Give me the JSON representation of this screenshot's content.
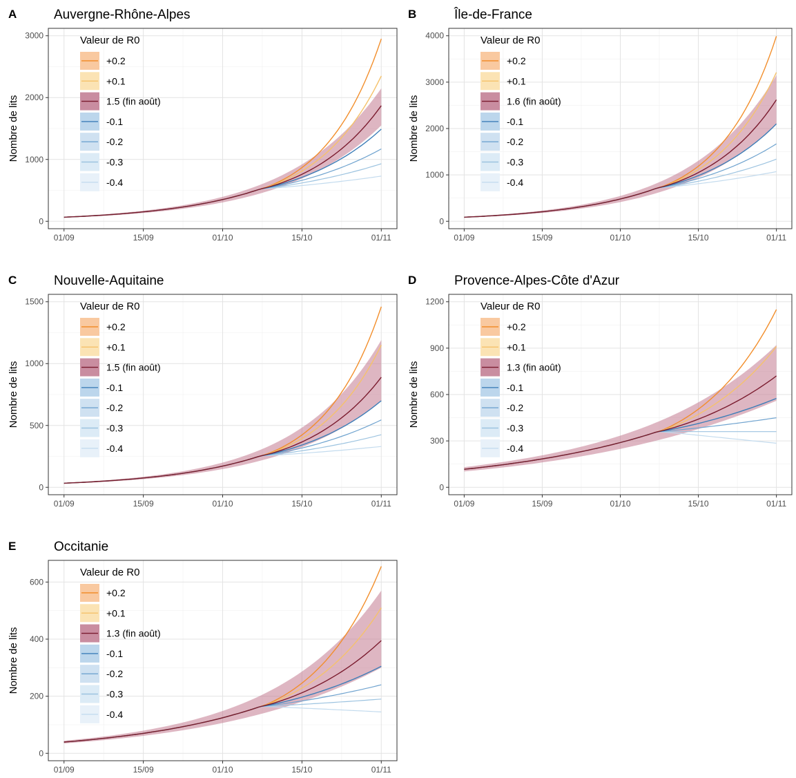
{
  "chart_data": [
    {
      "type": "line",
      "letter": "A",
      "title": "Auvergne-Rhône-Alpes",
      "ylabel": "Nombre de lits",
      "ylim": [
        0,
        3000
      ],
      "yticks": [
        0,
        1000,
        2000,
        3000
      ],
      "x_ticks": [
        "01/09",
        "15/09",
        "01/10",
        "15/10",
        "01/11"
      ],
      "legend_title": "Valeur de R0",
      "legend_labels": [
        "+0.2",
        "+0.1",
        "1.5 (fin août)",
        "-0.1",
        "-0.2",
        "-0.3",
        "-0.4"
      ],
      "series": [
        {
          "name": "+0.2",
          "end": 2950
        },
        {
          "name": "+0.1",
          "end": 2350
        },
        {
          "name": "1.5 (fin août)",
          "end": 1870,
          "band_end": [
            1550,
            2150
          ]
        },
        {
          "name": "-0.1",
          "end": 1490
        },
        {
          "name": "-0.2",
          "end": 1170
        },
        {
          "name": "-0.3",
          "end": 930
        },
        {
          "name": "-0.4",
          "end": 730
        }
      ]
    },
    {
      "type": "line",
      "letter": "B",
      "title": "Île-de-France",
      "ylabel": "Nombre de lits",
      "ylim": [
        0,
        4000
      ],
      "yticks": [
        0,
        1000,
        2000,
        3000,
        4000
      ],
      "x_ticks": [
        "01/09",
        "15/09",
        "01/10",
        "15/10",
        "01/11"
      ],
      "legend_title": "Valeur de R0",
      "legend_labels": [
        "+0.2",
        "+0.1",
        "1.6 (fin août)",
        "-0.1",
        "-0.2",
        "-0.3",
        "-0.4"
      ],
      "series": [
        {
          "name": "+0.2",
          "end": 3990
        },
        {
          "name": "+0.1",
          "end": 3210
        },
        {
          "name": "1.6 (fin août)",
          "end": 2620,
          "band_end": [
            2100,
            3150
          ]
        },
        {
          "name": "-0.1",
          "end": 2100
        },
        {
          "name": "-0.2",
          "end": 1670
        },
        {
          "name": "-0.3",
          "end": 1340
        },
        {
          "name": "-0.4",
          "end": 1070
        }
      ]
    },
    {
      "type": "line",
      "letter": "C",
      "title": "Nouvelle-Aquitaine",
      "ylabel": "Nombre de lits",
      "ylim": [
        0,
        1500
      ],
      "yticks": [
        0,
        500,
        1000,
        1500
      ],
      "x_ticks": [
        "01/09",
        "15/09",
        "01/10",
        "15/10",
        "01/11"
      ],
      "legend_title": "Valeur de R0",
      "legend_labels": [
        "+0.2",
        "+0.1",
        "1.5 (fin août)",
        "-0.1",
        "-0.2",
        "-0.3",
        "-0.4"
      ],
      "series": [
        {
          "name": "+0.2",
          "end": 1460
        },
        {
          "name": "+0.1",
          "end": 1150
        },
        {
          "name": "1.5 (fin août)",
          "end": 890,
          "band_end": [
            700,
            1190
          ]
        },
        {
          "name": "-0.1",
          "end": 700
        },
        {
          "name": "-0.2",
          "end": 545
        },
        {
          "name": "-0.3",
          "end": 425
        },
        {
          "name": "-0.4",
          "end": 330
        }
      ]
    },
    {
      "type": "line",
      "letter": "D",
      "title": "Provence-Alpes-Côte d'Azur",
      "ylabel": "Nombre de lits",
      "ylim": [
        0,
        1200
      ],
      "yticks": [
        0,
        300,
        600,
        900,
        1200
      ],
      "x_ticks": [
        "01/09",
        "15/09",
        "01/10",
        "15/10",
        "01/11"
      ],
      "legend_title": "Valeur de R0",
      "legend_labels": [
        "+0.2",
        "+0.1",
        "1.3 (fin août)",
        "-0.1",
        "-0.2",
        "-0.3",
        "-0.4"
      ],
      "series": [
        {
          "name": "+0.2",
          "end": 1150
        },
        {
          "name": "+0.1",
          "end": 910
        },
        {
          "name": "1.3 (fin août)",
          "end": 720,
          "band_end": [
            560,
            920
          ]
        },
        {
          "name": "-0.1",
          "end": 575
        },
        {
          "name": "-0.2",
          "end": 450
        },
        {
          "name": "-0.3",
          "end": 360
        },
        {
          "name": "-0.4",
          "end": 285
        }
      ]
    },
    {
      "type": "line",
      "letter": "E",
      "title": "Occitanie",
      "ylabel": "Nombre de lits",
      "ylim": [
        0,
        650
      ],
      "yticks": [
        0,
        200,
        400,
        600
      ],
      "x_ticks": [
        "01/09",
        "15/09",
        "01/10",
        "15/10",
        "01/11"
      ],
      "legend_title": "Valeur de R0",
      "legend_labels": [
        "+0.2",
        "+0.1",
        "1.3 (fin août)",
        "-0.1",
        "-0.2",
        "-0.3",
        "-0.4"
      ],
      "series": [
        {
          "name": "+0.2",
          "end": 655
        },
        {
          "name": "+0.1",
          "end": 510
        },
        {
          "name": "1.3 (fin août)",
          "end": 395,
          "band_end": [
            300,
            570
          ]
        },
        {
          "name": "-0.1",
          "end": 305
        },
        {
          "name": "-0.2",
          "end": 240
        },
        {
          "name": "-0.3",
          "end": 190
        },
        {
          "name": "-0.4",
          "end": 145
        }
      ]
    }
  ],
  "colors": {
    "plus02": "#f28e2b",
    "plus01": "#f5c26b",
    "base": "#7a1b2e",
    "band": "#c27a8f",
    "minus01": "#3d7eb8",
    "minus02": "#6fa3cf",
    "minus03": "#9cc3e0",
    "minus04": "#c3dbee"
  }
}
